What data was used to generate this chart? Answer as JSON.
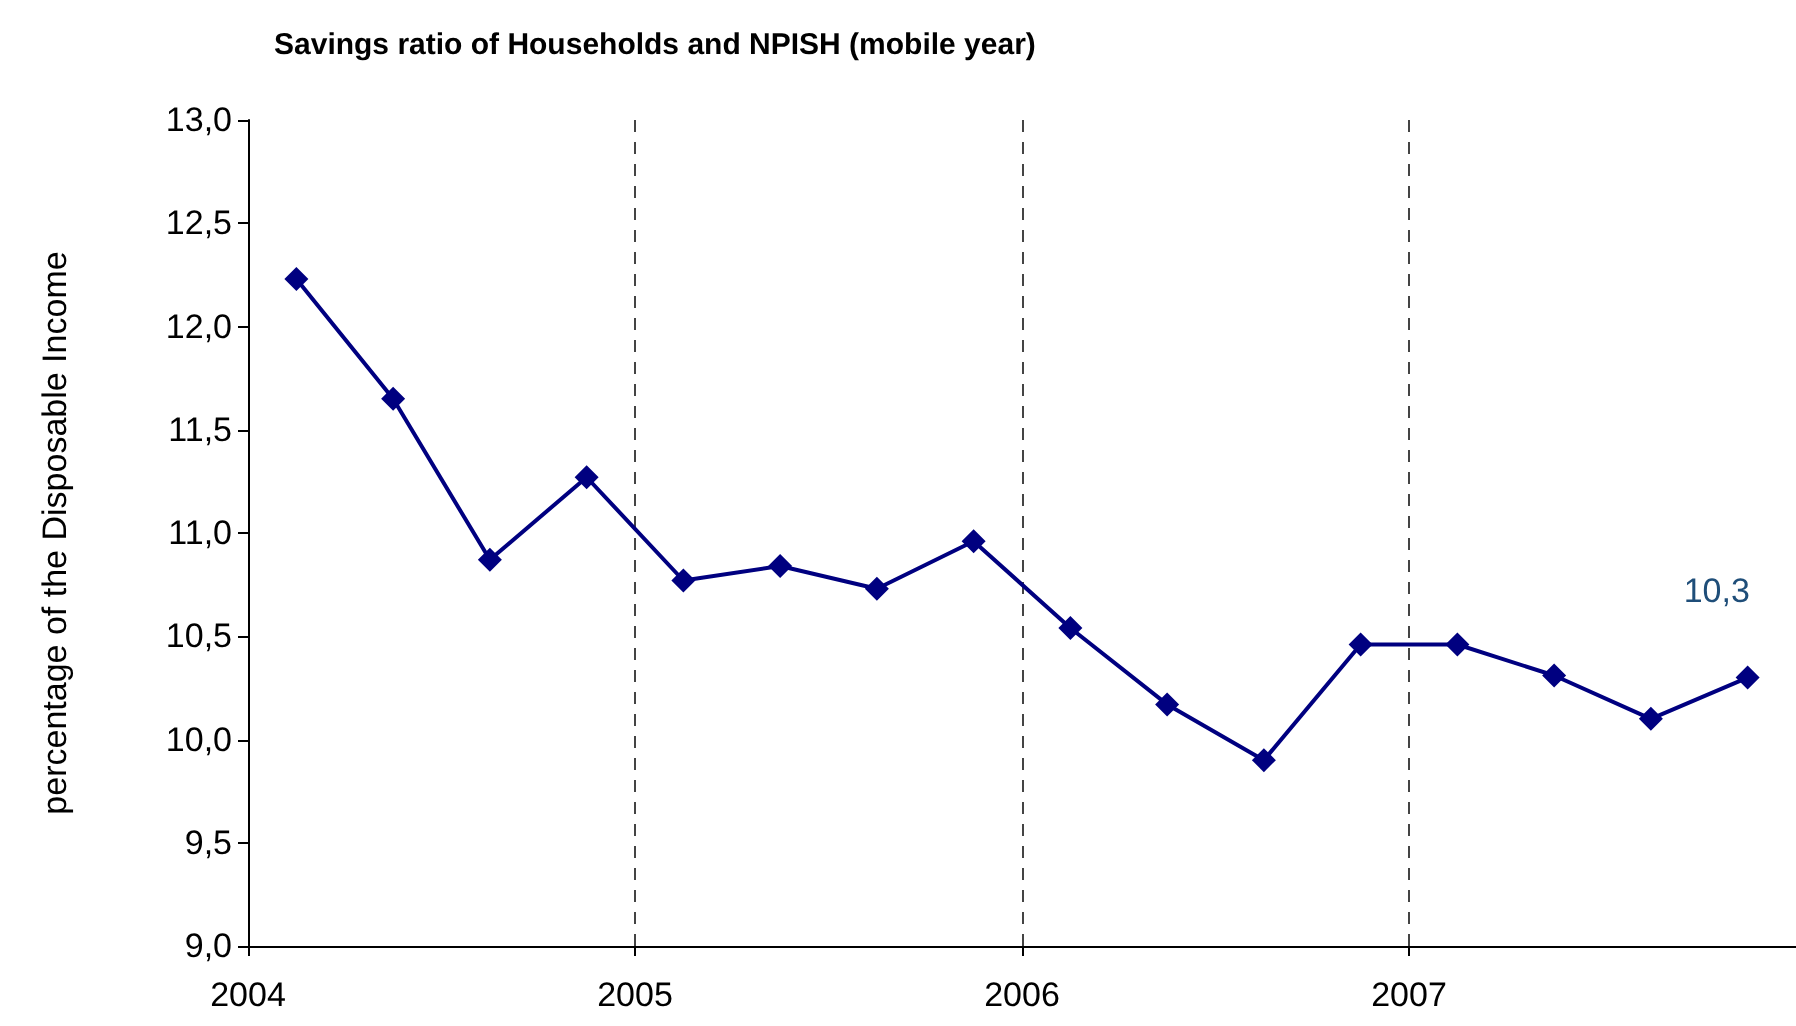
{
  "chart_data": {
    "type": "line",
    "title": "Savings ratio of Households and NPISH (mobile year)",
    "ylabel": "percentage of the Disposable Income",
    "x": [
      2004.125,
      2004.375,
      2004.625,
      2004.875,
      2005.125,
      2005.375,
      2005.625,
      2005.875,
      2006.125,
      2006.375,
      2006.625,
      2006.875,
      2007.125,
      2007.375,
      2007.625,
      2007.875
    ],
    "series": [
      {
        "color": "#000080",
        "values": [
          12.23,
          11.65,
          10.87,
          11.27,
          10.77,
          10.84,
          10.73,
          10.96,
          10.54,
          10.17,
          9.9,
          10.46,
          10.46,
          10.31,
          10.1,
          10.3
        ],
        "value_labels": [
          null,
          null,
          null,
          null,
          null,
          null,
          null,
          null,
          null,
          null,
          null,
          null,
          null,
          null,
          null,
          "10,3"
        ]
      }
    ],
    "xlim": [
      2004,
      2008
    ],
    "xticks": [
      2004,
      2005,
      2006,
      2007
    ],
    "ylim": [
      9,
      13
    ],
    "yticks": [
      {
        "value": 9,
        "label": "9,0"
      },
      {
        "value": 9.5,
        "label": "9,5"
      },
      {
        "value": 10,
        "label": "10,0"
      },
      {
        "value": 10.5,
        "label": "10,5"
      },
      {
        "value": 11,
        "label": "11,0"
      },
      {
        "value": 11.5,
        "label": "11,5"
      },
      {
        "value": 12,
        "label": "12,0"
      },
      {
        "value": 12.5,
        "label": "12,5"
      },
      {
        "value": 13,
        "label": "13,0"
      }
    ],
    "grid": "x",
    "marker": "diamond",
    "line_style": "solid"
  }
}
